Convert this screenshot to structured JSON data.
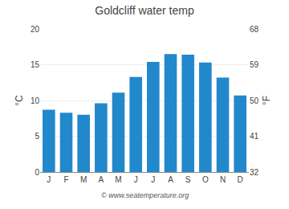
{
  "chart_data": {
    "type": "bar",
    "title": "Goldcliff water temp",
    "categories": [
      "J",
      "F",
      "M",
      "A",
      "M",
      "J",
      "J",
      "A",
      "S",
      "O",
      "N",
      "D"
    ],
    "values": [
      8.7,
      8.3,
      8.0,
      9.6,
      11.1,
      13.3,
      15.4,
      16.5,
      16.4,
      15.3,
      13.2,
      10.7
    ],
    "color": "#2288cc",
    "ylabel": "°C",
    "y2label": "°F",
    "ylim": [
      0,
      20
    ],
    "yticks": [
      0,
      5,
      10,
      15,
      20
    ],
    "y2lim": [
      32,
      68
    ],
    "y2ticks": [
      32,
      41,
      50,
      59,
      68
    ],
    "annotations": [
      "© www.seatemperature.org"
    ],
    "grid": true
  }
}
